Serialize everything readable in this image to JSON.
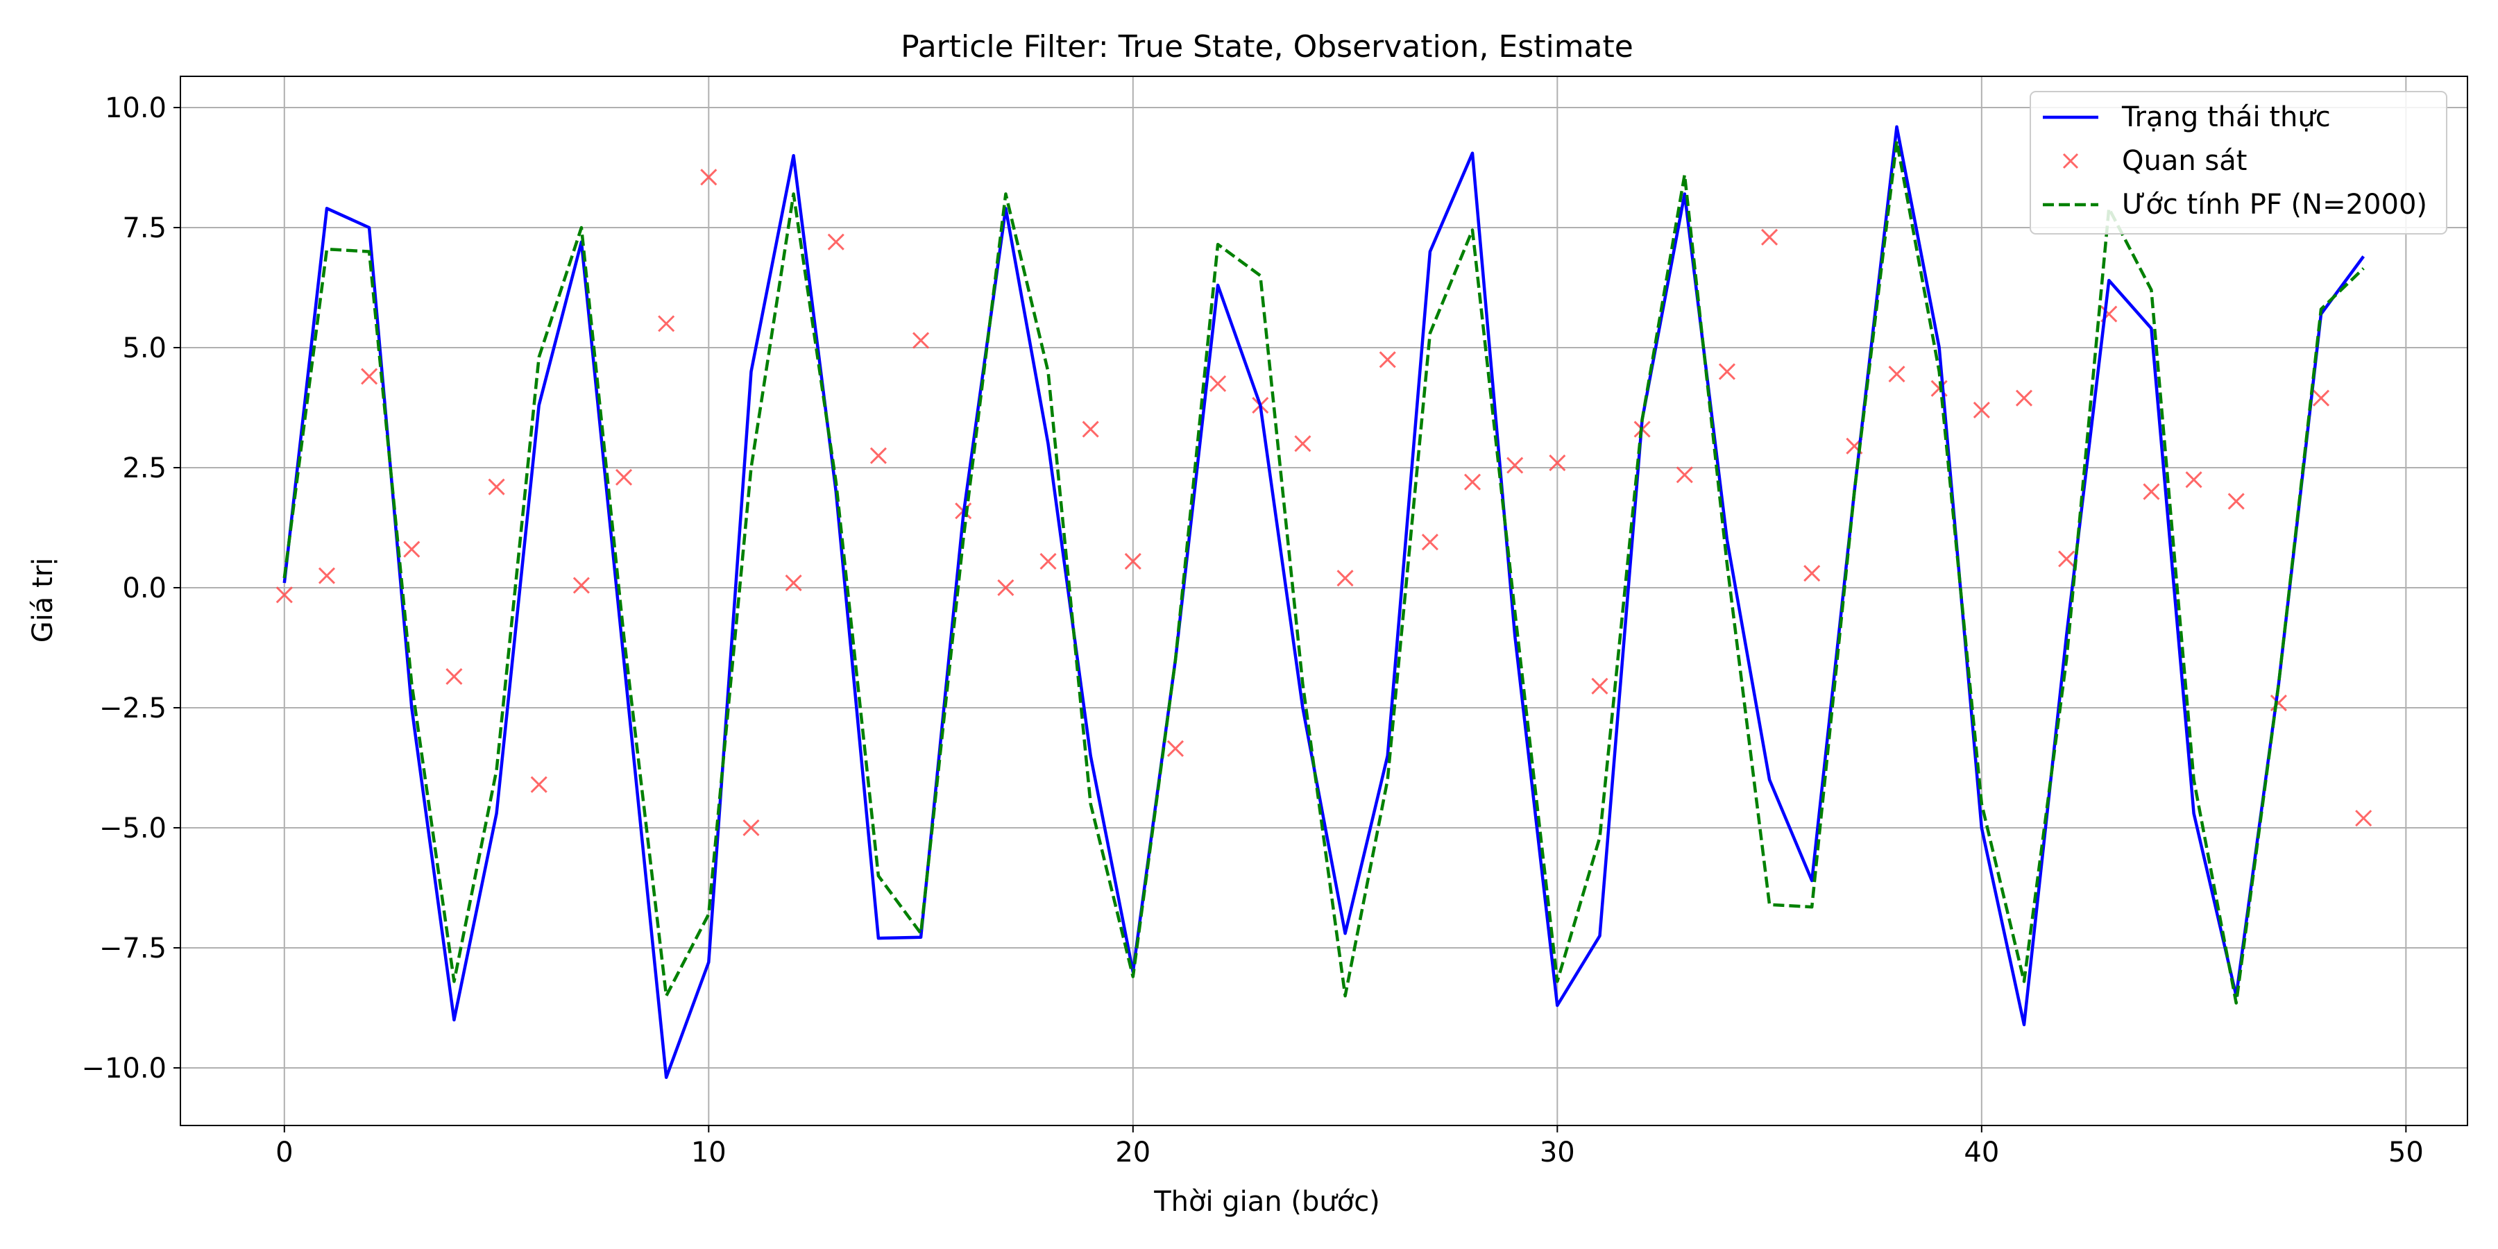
{
  "chart_data": {
    "type": "line",
    "title": "Particle Filter: True State, Observation, Estimate",
    "xlabel": "Thời gian (bước)",
    "ylabel": "Giá trị",
    "xlim": [
      -2.45,
      51.45
    ],
    "ylim": [
      -11.2,
      10.65
    ],
    "xticks": [
      0,
      10,
      20,
      30,
      40,
      50
    ],
    "xtick_labels": [
      "0",
      "10",
      "20",
      "30",
      "40",
      "50"
    ],
    "yticks": [
      -10.0,
      -7.5,
      -5.0,
      -2.5,
      0.0,
      2.5,
      5.0,
      7.5,
      10.0
    ],
    "ytick_labels": [
      "−10.0",
      "−7.5",
      "−5.0",
      "−2.5",
      "0.0",
      "2.5",
      "5.0",
      "7.5",
      "10.0"
    ],
    "grid": true,
    "legend_position": "top-right",
    "x": [
      0,
      1,
      2,
      3,
      4,
      5,
      6,
      7,
      8,
      9,
      10,
      11,
      12,
      13,
      14,
      15,
      16,
      17,
      18,
      19,
      20,
      21,
      22,
      23,
      24,
      25,
      26,
      27,
      28,
      29,
      30,
      31,
      32,
      33,
      34,
      35,
      36,
      37,
      38,
      39,
      40,
      41,
      42,
      43,
      44,
      45,
      46,
      47,
      48,
      49
    ],
    "series": [
      {
        "name": "Trạng thái thực",
        "style": "solid",
        "marker": "none",
        "color": "#0000ff",
        "values": [
          0.1,
          7.9,
          7.5,
          -2.5,
          -9.0,
          -4.7,
          3.8,
          7.2,
          -1.5,
          -10.2,
          -7.8,
          4.5,
          9.0,
          2.0,
          -7.3,
          -7.28,
          1.5,
          7.9,
          3.0,
          -3.5,
          -8.0,
          -1.5,
          6.3,
          3.8,
          -2.5,
          -7.2,
          -3.5,
          7.0,
          9.05,
          -1.0,
          -8.7,
          -7.25,
          3.5,
          8.2,
          1.0,
          -4.0,
          -6.1,
          2.0,
          9.6,
          5.0,
          -5.0,
          -9.1,
          -1.0,
          6.4,
          5.4,
          -4.7,
          -8.5,
          -2.0,
          5.7,
          6.9
        ]
      },
      {
        "name": "Quan sát",
        "style": "none",
        "marker": "x",
        "color": "#ff4d4d",
        "values": [
          -0.15,
          0.25,
          4.4,
          0.8,
          -1.85,
          2.1,
          -4.1,
          0.05,
          2.3,
          5.5,
          8.55,
          -5.0,
          0.1,
          7.2,
          2.75,
          5.15,
          1.6,
          0.0,
          0.55,
          3.3,
          0.55,
          -3.35,
          4.25,
          3.8,
          3.0,
          0.2,
          4.75,
          0.95,
          2.2,
          2.55,
          2.6,
          -2.05,
          3.3,
          2.35,
          4.5,
          7.3,
          0.3,
          2.95,
          4.45,
          4.15,
          3.7,
          3.95,
          0.6,
          5.7,
          2.0,
          2.25,
          1.8,
          -2.4,
          3.95,
          -4.8
        ]
      },
      {
        "name": "Ước tính PF (N=2000)",
        "style": "dashed",
        "marker": "none",
        "color": "#008000",
        "values": [
          0.2,
          7.05,
          7.0,
          -2.0,
          -8.2,
          -3.8,
          4.8,
          7.5,
          -1.0,
          -8.5,
          -6.8,
          2.5,
          8.2,
          2.2,
          -6.0,
          -7.2,
          1.0,
          8.2,
          4.5,
          -4.5,
          -8.1,
          -1.5,
          7.15,
          6.5,
          -2.0,
          -8.5,
          -4.0,
          5.3,
          7.45,
          -0.5,
          -8.2,
          -5.2,
          3.5,
          8.6,
          0.5,
          -6.6,
          -6.65,
          2.0,
          9.3,
          4.5,
          -4.5,
          -8.2,
          -1.5,
          7.9,
          6.2,
          -4.0,
          -8.65,
          -2.0,
          5.8,
          6.65
        ]
      }
    ]
  }
}
